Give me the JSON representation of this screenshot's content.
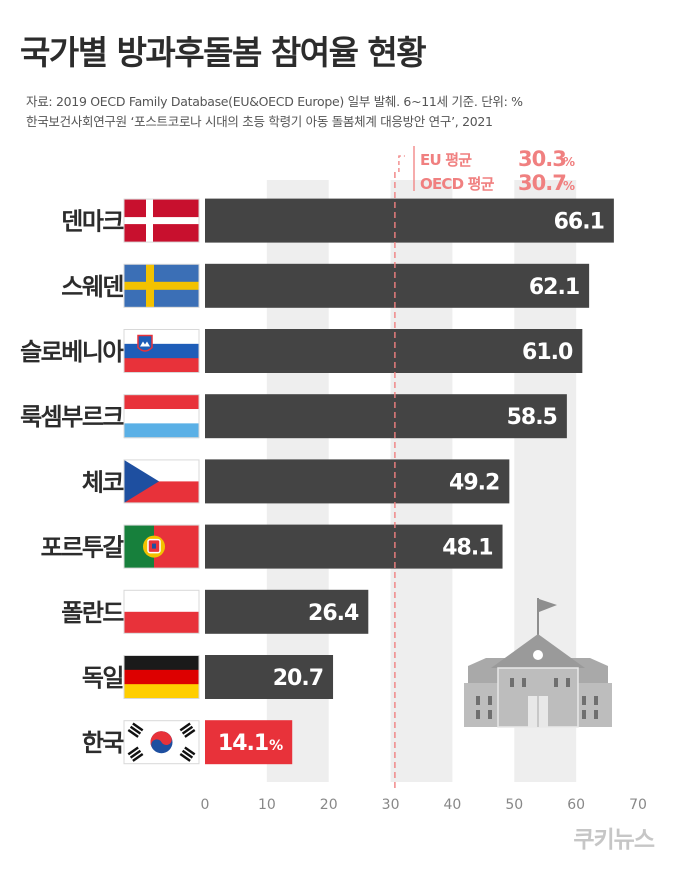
{
  "title": "국가별 방과후돌봄 참여율 현황",
  "source": {
    "line1": "자료: 2019 OECD Family Database(EU&OECD Europe) 일부 발췌.  6~11세 기준. 단위: %",
    "line2": "한국보건사회연구원 ‘포스트코로나 시대의 초등 학령기 아동 돌봄체계 대응방안 연구’, 2021"
  },
  "brand": "쿠키뉴스",
  "colors": {
    "bar": "#444444",
    "highlight": "#e8323a",
    "reference": "#f08080",
    "stripe": "#eeeeee"
  },
  "chart_data": {
    "type": "bar",
    "orientation": "horizontal",
    "categories": [
      "덴마크",
      "스웨덴",
      "슬로베니아",
      "룩셈부르크",
      "체코",
      "포르투갈",
      "폴란드",
      "독일",
      "한국"
    ],
    "values": [
      66.1,
      62.1,
      61.0,
      58.5,
      49.2,
      48.1,
      26.4,
      20.7,
      14.1
    ],
    "value_labels": [
      "66.1",
      "62.1",
      "61.0",
      "58.5",
      "49.2",
      "48.1",
      "26.4",
      "20.7",
      "14.1"
    ],
    "highlight_category": "한국",
    "highlight_unit": "%",
    "xlim": [
      0,
      70
    ],
    "xticks": [
      "0",
      "10",
      "20",
      "30",
      "40",
      "50",
      "60",
      "70"
    ],
    "reference_lines": [
      {
        "label": "EU 평균",
        "value": 30.3,
        "value_label": "30.3",
        "unit": "%"
      },
      {
        "label": "OECD 평균",
        "value": 30.7,
        "value_label": "30.7",
        "unit": "%"
      }
    ],
    "flags": [
      "denmark-flag",
      "sweden-flag",
      "slovenia-flag",
      "luxembourg-flag",
      "czech-flag",
      "portugal-flag",
      "poland-flag",
      "germany-flag",
      "korea-flag"
    ],
    "decoration": "school-building-icon"
  }
}
